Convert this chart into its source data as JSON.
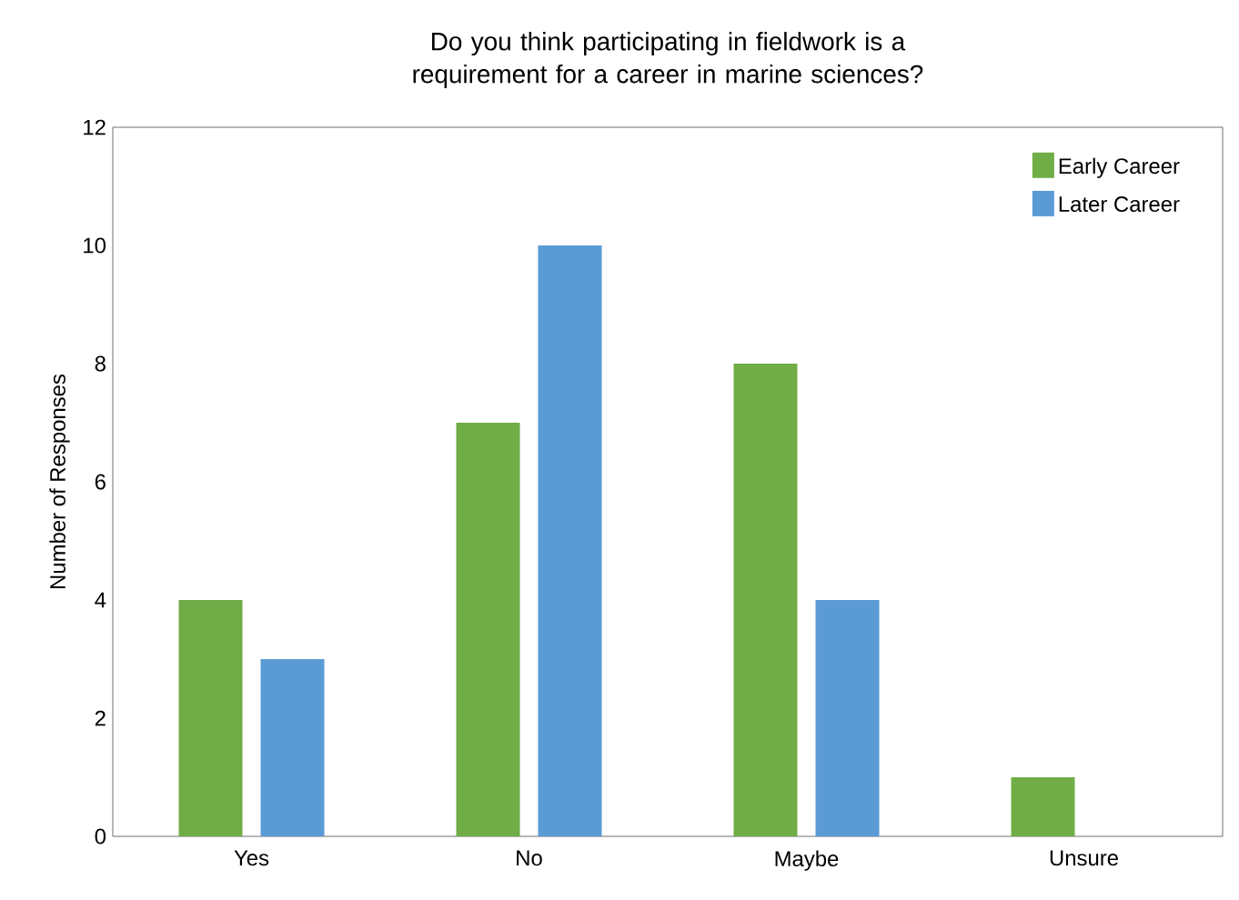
{
  "chart_data": {
    "type": "bar",
    "title": "Do you think participating in fieldwork is a requirement for a career in marine sciences?",
    "ylabel": "Number of Responses",
    "categories": [
      "Yes",
      "No",
      "Maybe",
      "Unsure"
    ],
    "series": [
      {
        "name": "Early Career",
        "color": "#70ad47",
        "values": [
          4,
          7,
          8,
          1
        ]
      },
      {
        "name": "Later Career",
        "color": "#5b9bd5",
        "values": [
          3,
          10,
          4,
          0
        ]
      }
    ],
    "ylim": [
      0,
      12
    ],
    "yticks": [
      0,
      2,
      4,
      6,
      8,
      10,
      12
    ],
    "legend": "top right"
  }
}
